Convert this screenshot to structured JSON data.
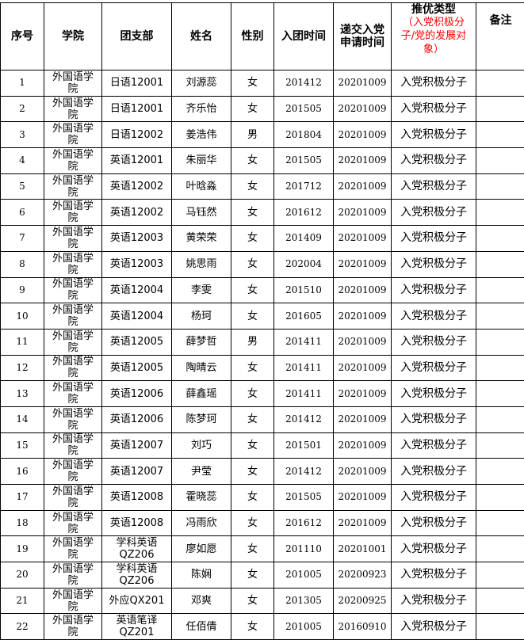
{
  "headers": {
    "seq": "序号",
    "college": "学院",
    "branch": "团支部",
    "name": "姓名",
    "gender": "性别",
    "league_date": "入团时间",
    "apply_date": "递交入党申请时间",
    "type_title": "推优类型",
    "type_note": "（入党积极分子/党的发展对象）",
    "remark": "备注"
  },
  "colors": {
    "note_red": "#ff0000"
  },
  "rows": [
    {
      "seq": "1",
      "college": "外国语学院",
      "branch": "日语12001",
      "name": "刘源蕊",
      "gender": "女",
      "league": "201412",
      "apply": "20201009",
      "type": "入党积极分子",
      "remark": ""
    },
    {
      "seq": "2",
      "college": "外国语学院",
      "branch": "日语12001",
      "name": "齐乐怡",
      "gender": "女",
      "league": "201505",
      "apply": "20201009",
      "type": "入党积极分子",
      "remark": ""
    },
    {
      "seq": "3",
      "college": "外国语学院",
      "branch": "日语12002",
      "name": "姜浩伟",
      "gender": "男",
      "league": "201804",
      "apply": "20201009",
      "type": "入党积极分子",
      "remark": ""
    },
    {
      "seq": "4",
      "college": "外国语学院",
      "branch": "英语12001",
      "name": "朱丽华",
      "gender": "女",
      "league": "201505",
      "apply": "20201009",
      "type": "入党积极分子",
      "remark": ""
    },
    {
      "seq": "5",
      "college": "外国语学院",
      "branch": "英语12002",
      "name": "叶晗淼",
      "gender": "女",
      "league": "201712",
      "apply": "20201009",
      "type": "入党积极分子",
      "remark": ""
    },
    {
      "seq": "6",
      "college": "外国语学院",
      "branch": "英语12002",
      "name": "马钰然",
      "gender": "女",
      "league": "201612",
      "apply": "20201009",
      "type": "入党积极分子",
      "remark": ""
    },
    {
      "seq": "7",
      "college": "外国语学院",
      "branch": "英语12003",
      "name": "黄荣荣",
      "gender": "女",
      "league": "201409",
      "apply": "20201009",
      "type": "入党积极分子",
      "remark": ""
    },
    {
      "seq": "8",
      "college": "外国语学院",
      "branch": "英语12003",
      "name": "姚思雨",
      "gender": "女",
      "league": "202004",
      "apply": "20201009",
      "type": "入党积极分子",
      "remark": ""
    },
    {
      "seq": "9",
      "college": "外国语学院",
      "branch": "英语12004",
      "name": "李雯",
      "gender": "女",
      "league": "201510",
      "apply": "20201009",
      "type": "入党积极分子",
      "remark": ""
    },
    {
      "seq": "10",
      "college": "外国语学院",
      "branch": "英语12004",
      "name": "杨珂",
      "gender": "女",
      "league": "201605",
      "apply": "20201009",
      "type": "入党积极分子",
      "remark": ""
    },
    {
      "seq": "11",
      "college": "外国语学院",
      "branch": "英语12005",
      "name": "薛梦哲",
      "gender": "男",
      "league": "201411",
      "apply": "20201009",
      "type": "入党积极分子",
      "remark": ""
    },
    {
      "seq": "12",
      "college": "外国语学院",
      "branch": "英语12005",
      "name": "陶晴云",
      "gender": "女",
      "league": "201411",
      "apply": "20201009",
      "type": "入党积极分子",
      "remark": ""
    },
    {
      "seq": "13",
      "college": "外国语学院",
      "branch": "英语12006",
      "name": "薛鑫瑶",
      "gender": "女",
      "league": "201411",
      "apply": "20201009",
      "type": "入党积极分子",
      "remark": ""
    },
    {
      "seq": "14",
      "college": "外国语学院",
      "branch": "英语12006",
      "name": "陈梦珂",
      "gender": "女",
      "league": "201412",
      "apply": "20201009",
      "type": "入党积极分子",
      "remark": ""
    },
    {
      "seq": "15",
      "college": "外国语学院",
      "branch": "英语12007",
      "name": "刘巧",
      "gender": "女",
      "league": "201501",
      "apply": "20201009",
      "type": "入党积极分子",
      "remark": ""
    },
    {
      "seq": "16",
      "college": "外国语学院",
      "branch": "英语12007",
      "name": "尹莹",
      "gender": "女",
      "league": "201412",
      "apply": "20201009",
      "type": "入党积极分子",
      "remark": ""
    },
    {
      "seq": "17",
      "college": "外国语学院",
      "branch": "英语12008",
      "name": "霍晓蕊",
      "gender": "女",
      "league": "201505",
      "apply": "20201009",
      "type": "入党积极分子",
      "remark": ""
    },
    {
      "seq": "18",
      "college": "外国语学院",
      "branch": "英语12008",
      "name": "冯雨欣",
      "gender": "女",
      "league": "201612",
      "apply": "20201009",
      "type": "入党积极分子",
      "remark": ""
    },
    {
      "seq": "19",
      "college": "外国语学院",
      "branch": "学科英语QZ206",
      "name": "廖如愿",
      "gender": "女",
      "league": "201110",
      "apply": "20201001",
      "type": "入党积极分子",
      "remark": ""
    },
    {
      "seq": "20",
      "college": "外国语学院",
      "branch": "学科英语QZ206",
      "name": "陈娴",
      "gender": "女",
      "league": "201005",
      "apply": "20200923",
      "type": "入党积极分子",
      "remark": ""
    },
    {
      "seq": "21",
      "college": "外国语学院",
      "branch": "外应QX201",
      "name": "邓爽",
      "gender": "女",
      "league": "201305",
      "apply": "20200925",
      "type": "入党积极分子",
      "remark": ""
    },
    {
      "seq": "22",
      "college": "外国语学院",
      "branch": "英语笔译QZ201",
      "name": "任佰倩",
      "gender": "女",
      "league": "201005",
      "apply": "20160910",
      "type": "入党积极分子",
      "remark": ""
    }
  ]
}
